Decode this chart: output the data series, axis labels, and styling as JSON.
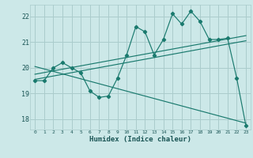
{
  "xlabel": "Humidex (Indice chaleur)",
  "background_color": "#cce8e8",
  "grid_color": "#aacccc",
  "line_color": "#1a7a6e",
  "xlim": [
    -0.5,
    23.5
  ],
  "ylim": [
    17.6,
    22.45
  ],
  "yticks": [
    18,
    19,
    20,
    21,
    22
  ],
  "xticks": [
    0,
    1,
    2,
    3,
    4,
    5,
    6,
    7,
    8,
    9,
    10,
    11,
    12,
    13,
    14,
    15,
    16,
    17,
    18,
    19,
    20,
    21,
    22,
    23
  ],
  "main_x": [
    0,
    1,
    2,
    3,
    4,
    5,
    6,
    7,
    8,
    9,
    10,
    11,
    12,
    13,
    14,
    15,
    16,
    17,
    18,
    19,
    20,
    21,
    22,
    23
  ],
  "main_y": [
    19.5,
    19.5,
    20.0,
    20.2,
    20.0,
    19.8,
    19.1,
    18.85,
    18.9,
    19.6,
    20.5,
    21.6,
    21.4,
    20.5,
    21.1,
    22.1,
    21.7,
    22.2,
    21.8,
    21.1,
    21.1,
    21.15,
    19.6,
    17.75
  ],
  "trend1_x": [
    0,
    23
  ],
  "trend1_y": [
    19.55,
    21.05
  ],
  "trend2_x": [
    0,
    23
  ],
  "trend2_y": [
    20.05,
    17.85
  ],
  "trend3_x": [
    0,
    23
  ],
  "trend3_y": [
    19.75,
    21.25
  ]
}
